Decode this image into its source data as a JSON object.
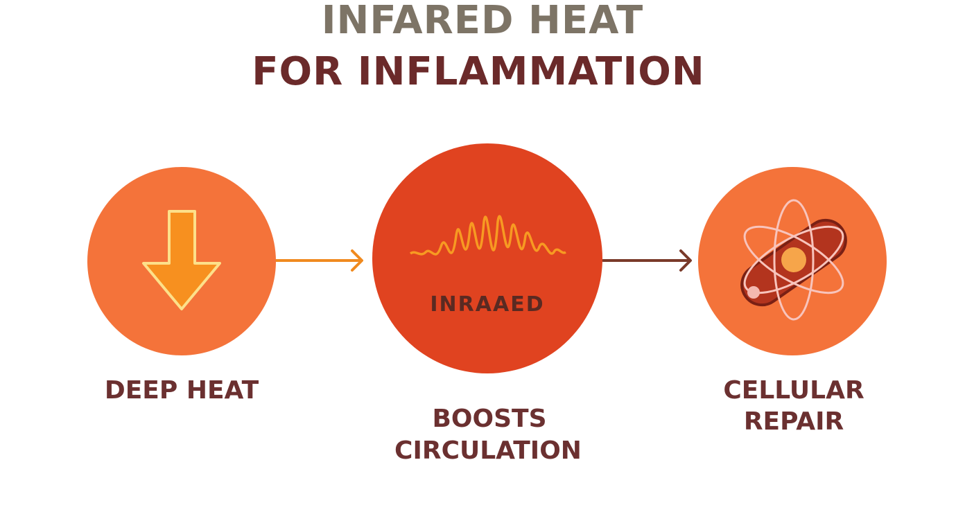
{
  "title": {
    "line1": "INFARED HEAT",
    "line2": "FOR INFLAMMATION"
  },
  "nodes": [
    {
      "label": [
        "DEEP HEAT"
      ]
    },
    {
      "badge": "INRAAED",
      "label": [
        "BOOSTS",
        "CIRCULATION"
      ]
    },
    {
      "label": [
        "CELLULAR",
        "REPAIR"
      ]
    }
  ]
}
